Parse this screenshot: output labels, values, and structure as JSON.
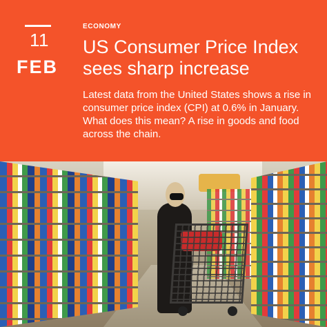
{
  "date": {
    "day": "11",
    "month": "FEB"
  },
  "category": "ECONOMY",
  "headline": "US Consumer Price Index sees sharp increase",
  "body": "Latest data from the United States shows a rise in consumer price index (CPI) at 0.6% in January. What does this mean? A rise in goods and food across the chain.",
  "colors": {
    "accent": "#f4532a",
    "text": "#ffffff"
  },
  "photo": {
    "subject": "shopper-with-cart-in-supermarket-aisle"
  }
}
